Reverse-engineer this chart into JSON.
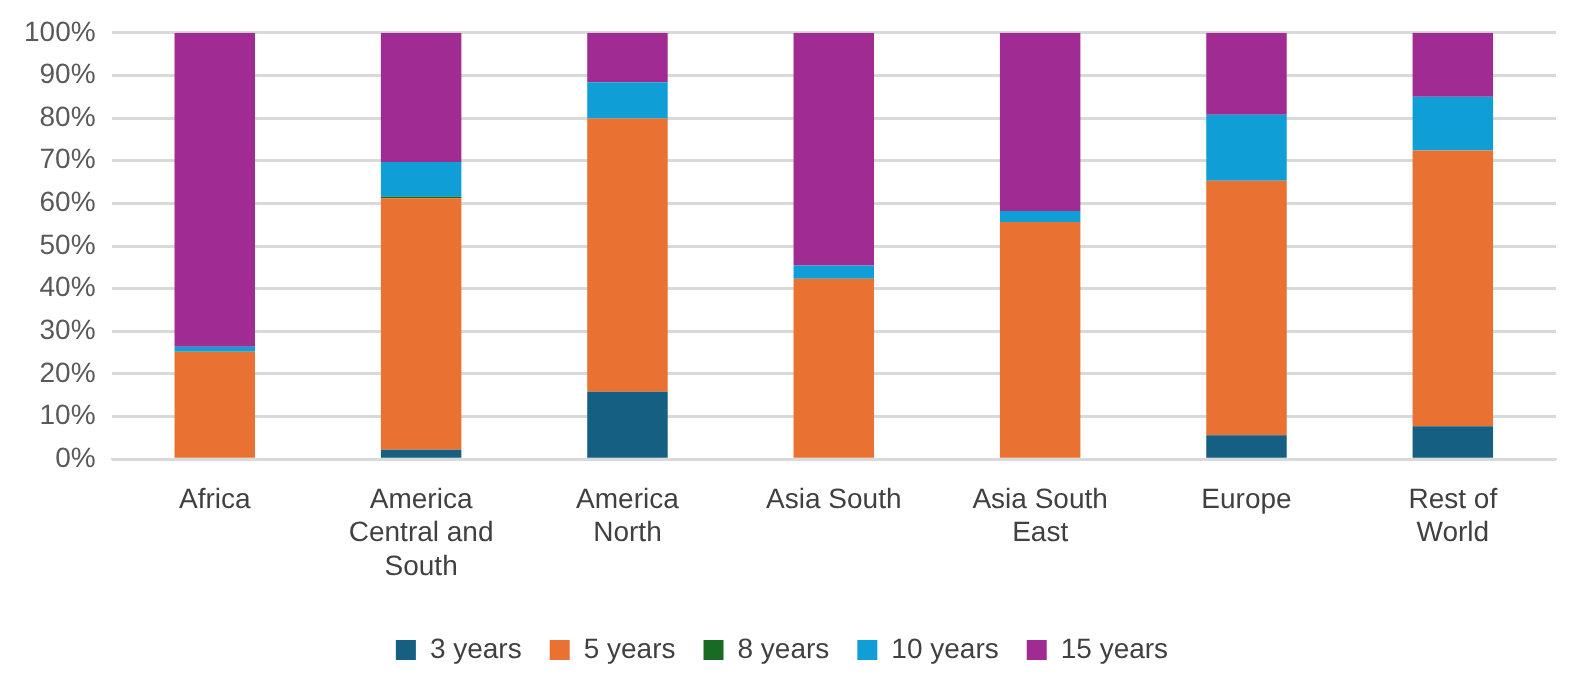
{
  "chart_data": {
    "type": "bar",
    "stacked": true,
    "categories": [
      "Africa",
      "America Central and South",
      "America North",
      "Asia South",
      "Asia South East",
      "Europe",
      "Rest of World"
    ],
    "series": [
      {
        "name": "3 years",
        "color": "#156082",
        "values": [
          0,
          2.2,
          15.8,
          0,
          0,
          5.6,
          7.7
        ]
      },
      {
        "name": "5 years",
        "color": "#e97132",
        "values": [
          25.2,
          59.0,
          64.1,
          42.3,
          55.6,
          59.7,
          64.7
        ]
      },
      {
        "name": "8 years",
        "color": "#196b24",
        "values": [
          0,
          0.4,
          0,
          0,
          0,
          0,
          0
        ]
      },
      {
        "name": "10 years",
        "color": "#0f9ed5",
        "values": [
          1.2,
          8.1,
          8.5,
          3.1,
          2.6,
          15.5,
          12.6
        ]
      },
      {
        "name": "15 years",
        "color": "#a02b93",
        "values": [
          73.6,
          30.3,
          11.6,
          54.6,
          41.8,
          19.2,
          15.0
        ]
      }
    ],
    "ylim": [
      0,
      100
    ],
    "yticks": [
      {
        "value": 0,
        "label": "0%"
      },
      {
        "value": 10,
        "label": "10%"
      },
      {
        "value": 20,
        "label": "20%"
      },
      {
        "value": 30,
        "label": "30%"
      },
      {
        "value": 40,
        "label": "40%"
      },
      {
        "value": 50,
        "label": "50%"
      },
      {
        "value": 60,
        "label": "60%"
      },
      {
        "value": 70,
        "label": "70%"
      },
      {
        "value": 80,
        "label": "80%"
      },
      {
        "value": 90,
        "label": "90%"
      },
      {
        "value": 100,
        "label": "100%"
      }
    ],
    "grid": "y",
    "legend": "bottom"
  }
}
